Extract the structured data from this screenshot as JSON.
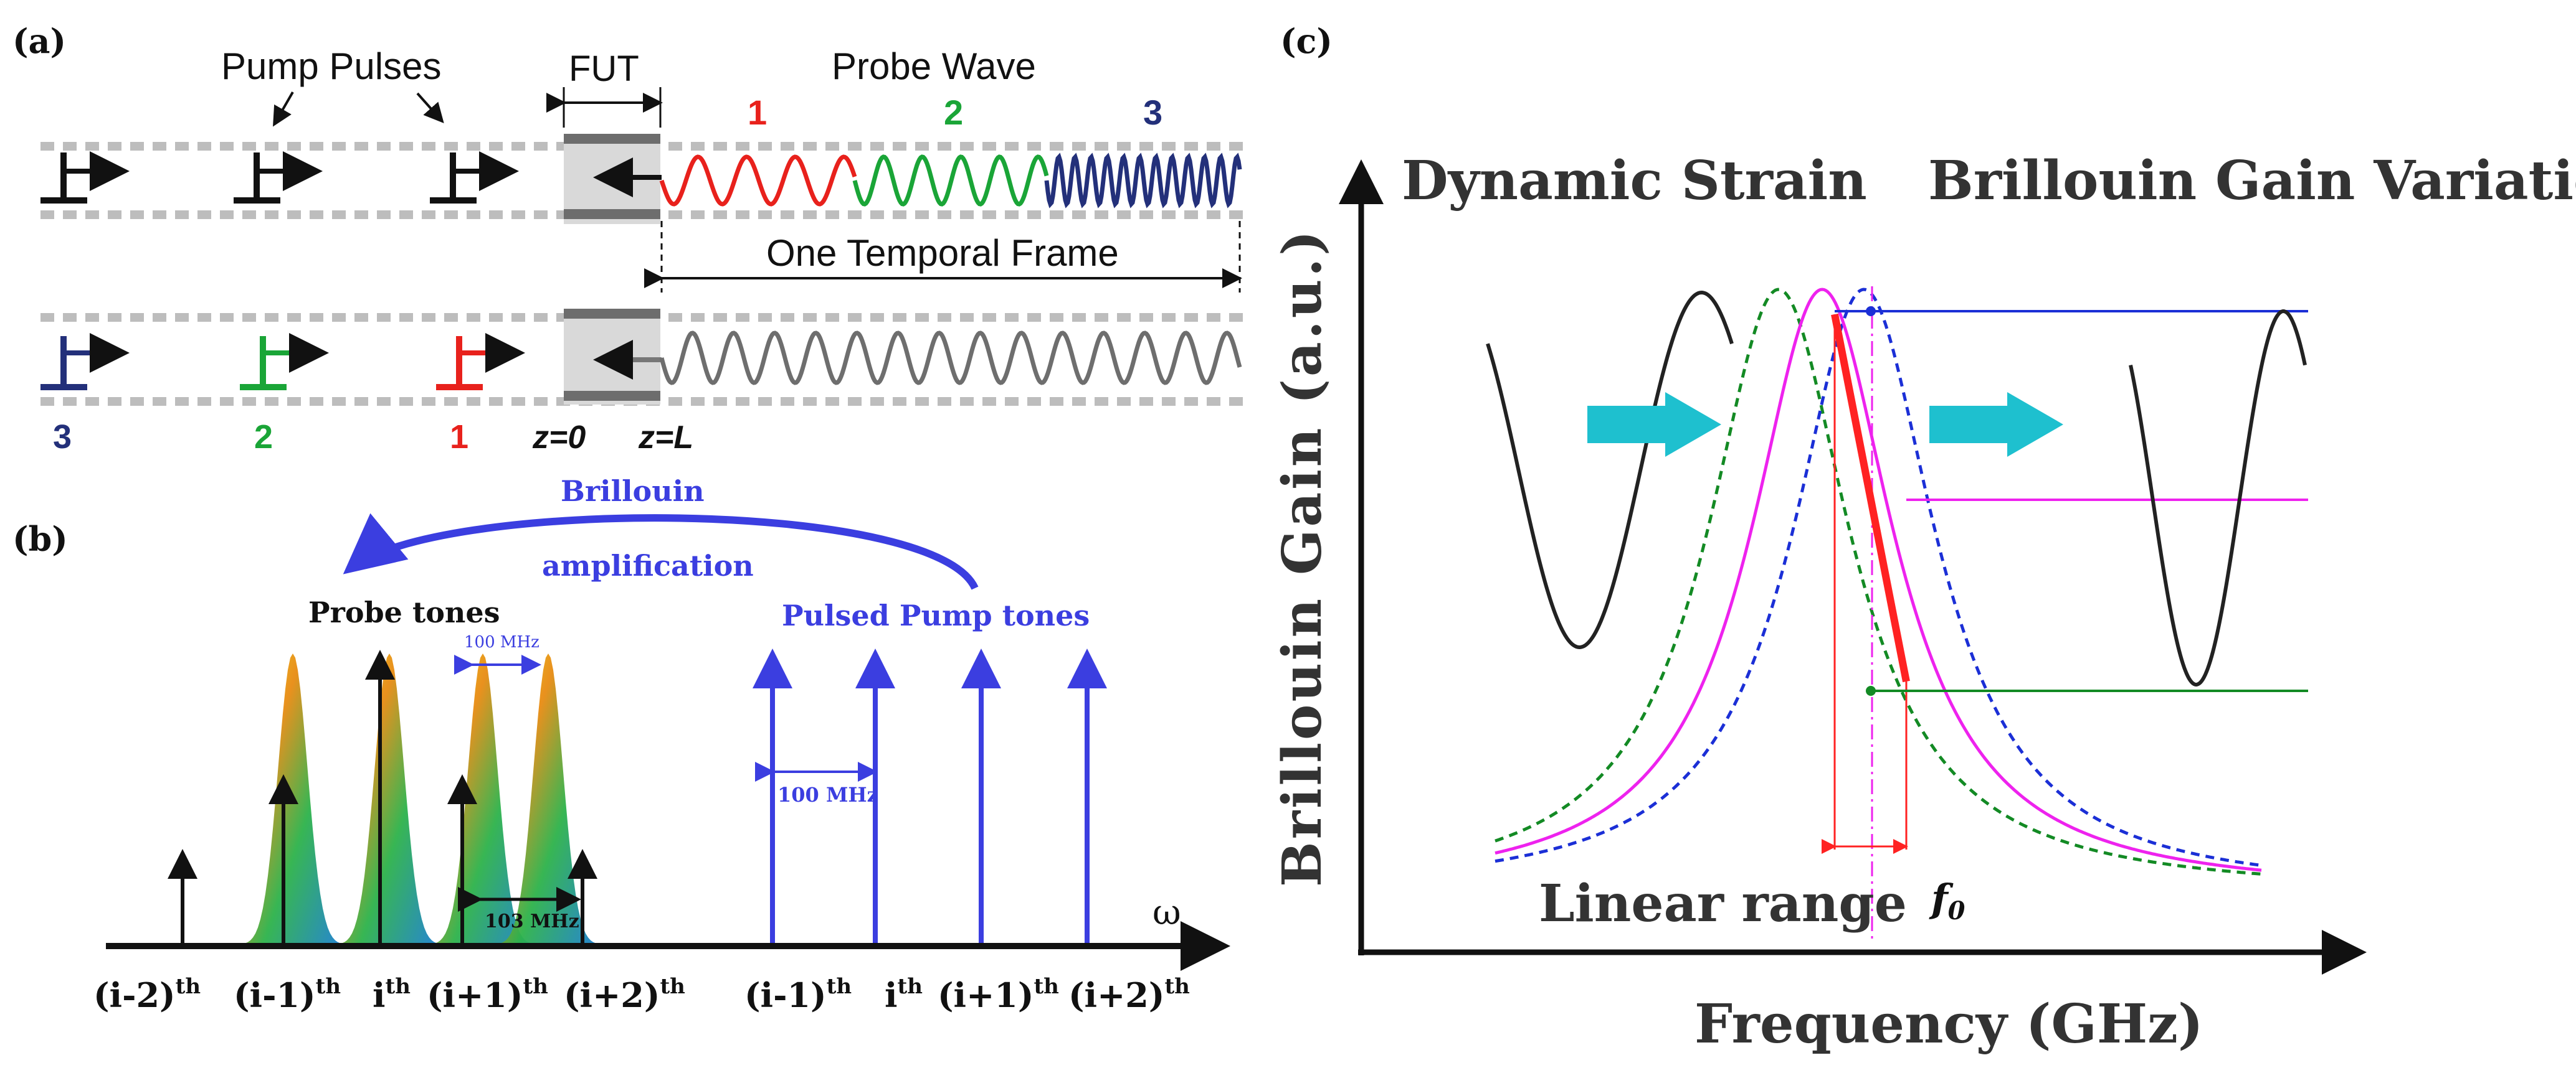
{
  "panels": {
    "a": {
      "label": "(a)",
      "pump_pulses_label": "Pump Pulses",
      "fut_label": "FUT",
      "probe_wave_label": "Probe Wave",
      "probe_segment_numbers": [
        "1",
        "2",
        "3"
      ],
      "one_temporal_frame_label": "One Temporal Frame",
      "pulse_numbers": [
        "3",
        "2",
        "1"
      ],
      "z0_label": "z=0",
      "zL_label": "z=L",
      "colors": {
        "red": "#e8211c",
        "green": "#1aa537",
        "navy": "#23307a",
        "gray": "#777777",
        "fut_fill": "#d9d9d9"
      }
    },
    "b": {
      "label": "(b)",
      "brillouin_label": "Brillouin",
      "amplification_label": "amplification",
      "probe_tones_label": "Probe tones",
      "pulsed_pump_tones_label": "Pulsed Pump tones",
      "spacing_100_top": "100 MHz",
      "spacing_100_pump": "100 MHz",
      "spacing_103": "103 MHz",
      "omega_label": "ω",
      "probe_orders": [
        {
          "base": "(i-2)",
          "sup": "th"
        },
        {
          "base": "(i-1)",
          "sup": "th"
        },
        {
          "base": "i",
          "sup": "th"
        },
        {
          "base": "(i+1)",
          "sup": "th"
        },
        {
          "base": "(i+2)",
          "sup": "th"
        }
      ],
      "pump_orders": [
        {
          "base": "(i-1)",
          "sup": "th"
        },
        {
          "base": "i",
          "sup": "th"
        },
        {
          "base": "(i+1)",
          "sup": "th"
        },
        {
          "base": "(i+2)",
          "sup": "th"
        }
      ],
      "colors": {
        "blue": "#3b3ee0"
      }
    },
    "c": {
      "label": "(c)",
      "dynamic_strain_label": "Dynamic Strain",
      "gain_variation_label": "Brillouin Gain Variation",
      "ylabel": "Brillouin Gain (a.u.)",
      "xlabel": "Frequency (GHz)",
      "linear_range_label": "Linear range",
      "f0_base": "f",
      "f0_sub": "0",
      "colors": {
        "magenta": "#ee22ee",
        "green": "#138a24",
        "blue": "#1b2fd6",
        "red": "#ff2222",
        "cyan": "#1ec0cf"
      }
    }
  }
}
